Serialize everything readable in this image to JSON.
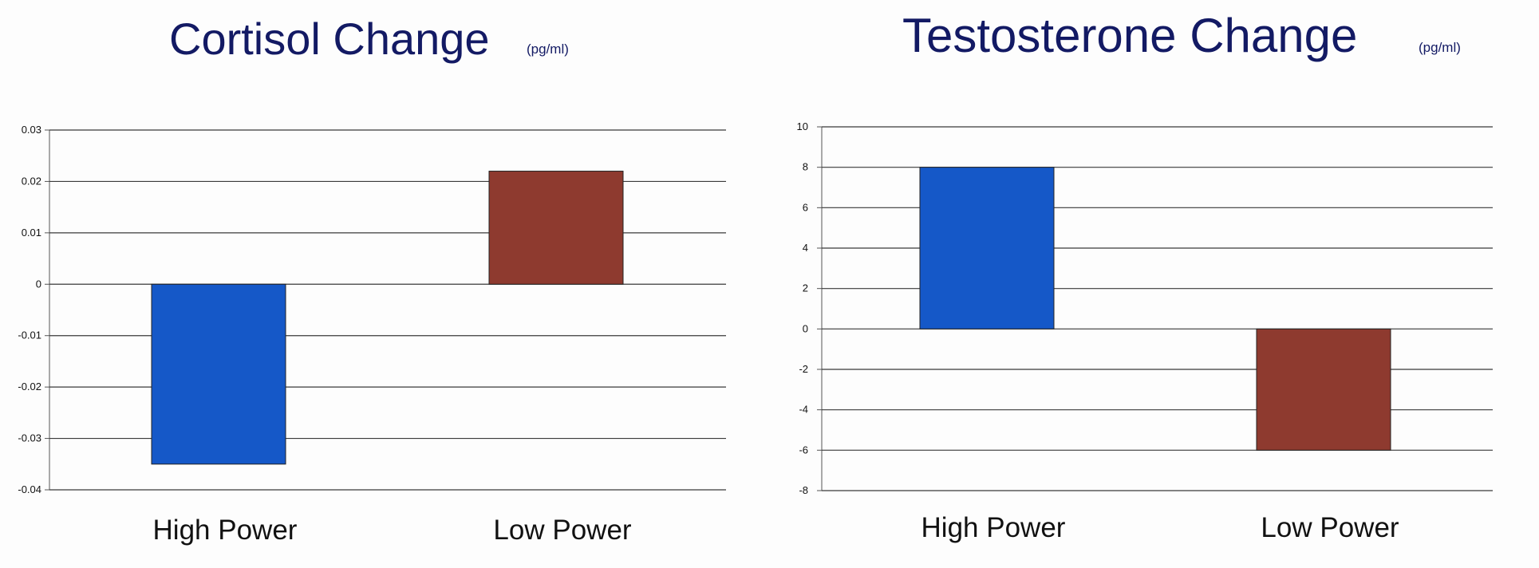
{
  "chart_data": [
    {
      "type": "bar",
      "title": "Cortisol Change",
      "title_unit": "(pg/ml)",
      "categories": [
        "High Power",
        "Low Power"
      ],
      "values": [
        -0.035,
        0.022
      ],
      "colors": [
        "#1558c8",
        "#8e3a2f"
      ],
      "ylim": [
        -0.04,
        0.03
      ],
      "yticks": [
        0.03,
        0.02,
        0.01,
        0,
        -0.01,
        -0.02,
        -0.03,
        -0.04
      ],
      "ytick_labels": [
        "0.03",
        "0.02",
        "0.01",
        "0",
        "-0.01",
        "-0.02",
        "-0.03",
        "-0.04"
      ],
      "grid": true,
      "legend": "none"
    },
    {
      "type": "bar",
      "title": "Testosterone Change",
      "title_unit": "(pg/ml)",
      "categories": [
        "High Power",
        "Low Power"
      ],
      "values": [
        8,
        -6
      ],
      "colors": [
        "#1558c8",
        "#8e3a2f"
      ],
      "ylim": [
        -8,
        10
      ],
      "yticks": [
        10,
        8,
        6,
        4,
        2,
        0,
        -2,
        -4,
        -6,
        -8
      ],
      "ytick_labels": [
        "10",
        "8",
        "6",
        "4",
        "2",
        "0",
        "-2",
        "-4",
        "-6",
        "-8"
      ],
      "grid": true,
      "legend": "none"
    }
  ]
}
